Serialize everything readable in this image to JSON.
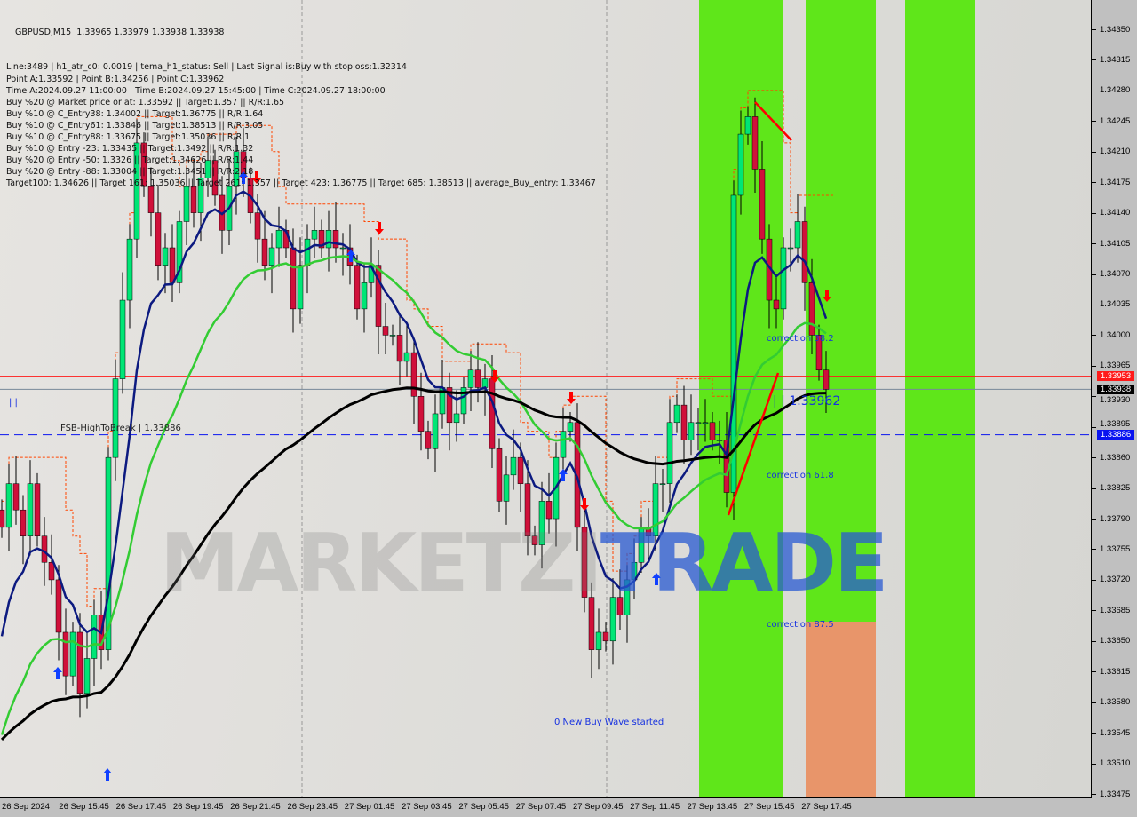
{
  "chart_data": {
    "type": "candlestick",
    "symbol_header": "GBPUSD,M15  1.33965 1.33979 1.33938 1.33938",
    "info_lines": [
      "Line:3489 | h1_atr_c0: 0.0019 | tema_h1_status: Sell | Last Signal is:Buy with stoploss:1.32314",
      "Point A:1.33592 | Point B:1.34256 | Point C:1.33962",
      "Time A:2024.09.27 11:00:00 | Time B:2024.09.27 15:45:00 | Time C:2024.09.27 18:00:00",
      "Buy %20 @ Market price or at: 1.33592 || Target:1.357 || R/R:1.65",
      "Buy %10 @ C_Entry38: 1.34002 || Target:1.36775 || R/R:1.64",
      "Buy %10 @ C_Entry61: 1.33846 || Target:1.38513 || R/R:3.05",
      "Buy %10 @ C_Entry88: 1.33675 || Target:1.35036 || R/R:1",
      "Buy %10 @ Entry -23: 1.33435 || Target:1.3492 || R/R:1.32",
      "Buy %20 @ Entry -50: 1.3326 || Target:1.34626 || R/R:1.44",
      "Buy %20 @ Entry -88: 1.33004 || Target:1.3451 || R/R:2.18",
      "Target100: 1.34626 || Target 161: 1.35036 || Target 261: 1.357 || Target 423: 1.36775 || Target 685: 1.38513 || average_Buy_entry: 1.33467"
    ],
    "ylim": [
      1.33475,
      1.3435
    ],
    "y_ticks": [
      "1.34350",
      "1.34315",
      "1.34280",
      "1.34245",
      "1.34210",
      "1.34175",
      "1.34140",
      "1.34105",
      "1.34070",
      "1.34035",
      "1.34000",
      "1.33965",
      "1.33930",
      "1.33895",
      "1.33860",
      "1.33825",
      "1.33790",
      "1.33755",
      "1.33720",
      "1.33685",
      "1.33650",
      "1.33615",
      "1.33580",
      "1.33545",
      "1.33510",
      "1.33475"
    ],
    "x_ticks": [
      "26 Sep 2024",
      "26 Sep 15:45",
      "26 Sep 17:45",
      "26 Sep 19:45",
      "26 Sep 21:45",
      "26 Sep 23:45",
      "27 Sep 01:45",
      "27 Sep 03:45",
      "27 Sep 05:45",
      "27 Sep 07:45",
      "27 Sep 09:45",
      "27 Sep 11:45",
      "27 Sep 13:45",
      "27 Sep 15:45",
      "27 Sep 17:45"
    ],
    "closes": [
      1.3378,
      1.3383,
      1.338,
      1.3377,
      1.3383,
      1.3377,
      1.3374,
      1.3372,
      1.3366,
      1.3361,
      1.3366,
      1.3359,
      1.3363,
      1.3368,
      1.3364,
      1.3386,
      1.3395,
      1.3404,
      1.3411,
      1.3422,
      1.3417,
      1.3414,
      1.3408,
      1.341,
      1.3406,
      1.3413,
      1.3417,
      1.3414,
      1.3418,
      1.342,
      1.3416,
      1.3412,
      1.3417,
      1.3421,
      1.3418,
      1.3414,
      1.3411,
      1.3408,
      1.341,
      1.3412,
      1.341,
      1.3403,
      1.3408,
      1.3411,
      1.3412,
      1.341,
      1.3412,
      1.341,
      1.341,
      1.3408,
      1.3403,
      1.3406,
      1.3408,
      1.3401,
      1.34,
      1.34,
      1.3397,
      1.3398,
      1.3393,
      1.3389,
      1.3387,
      1.3391,
      1.3394,
      1.339,
      1.3391,
      1.3394,
      1.3396,
      1.3394,
      1.3395,
      1.3387,
      1.3381,
      1.3384,
      1.3386,
      1.3383,
      1.3377,
      1.3376,
      1.3381,
      1.3379,
      1.3386,
      1.3389,
      1.339,
      1.3378,
      1.337,
      1.3364,
      1.3366,
      1.3365,
      1.337,
      1.3368,
      1.3372,
      1.3374,
      1.3378,
      1.3377,
      1.3383,
      1.3383,
      1.339,
      1.3392,
      1.3388,
      1.339,
      1.339,
      1.339,
      1.3388,
      1.3388,
      1.3382,
      1.3416,
      1.3423,
      1.3425,
      1.3419,
      1.3411,
      1.3404,
      1.3403,
      1.341,
      1.341,
      1.3413,
      1.3406,
      1.34,
      1.3396,
      1.33938
    ],
    "price_lines": [
      {
        "label": "1.33953",
        "color": "#ff1a1a",
        "value": 1.33953
      },
      {
        "label": "1.33938",
        "color": "#000000",
        "value": 1.33938
      },
      {
        "label": "1.33886",
        "color": "#0a14f0",
        "value": 1.33886
      }
    ],
    "annotations": {
      "fsb": "FSB-HighToBreak | 1.33886",
      "c382": "correction 38.2",
      "c618": "correction 61.8",
      "c875": "correction 87.5",
      "pointc": "| | 1.33962",
      "wave": "0 New Buy Wave started",
      "bars": "| |"
    },
    "colors": {
      "bull": "#00e676",
      "bear": "#d0103a",
      "ma_fast": "#0c1a80",
      "ma_mid": "#33cc33",
      "ma_slow": "#000000",
      "zone": "#5fe61a",
      "zone_sell": "#e8956a",
      "stop_line": "#ff4500"
    },
    "watermark": [
      "MARKETZI",
      "TRADE"
    ]
  }
}
